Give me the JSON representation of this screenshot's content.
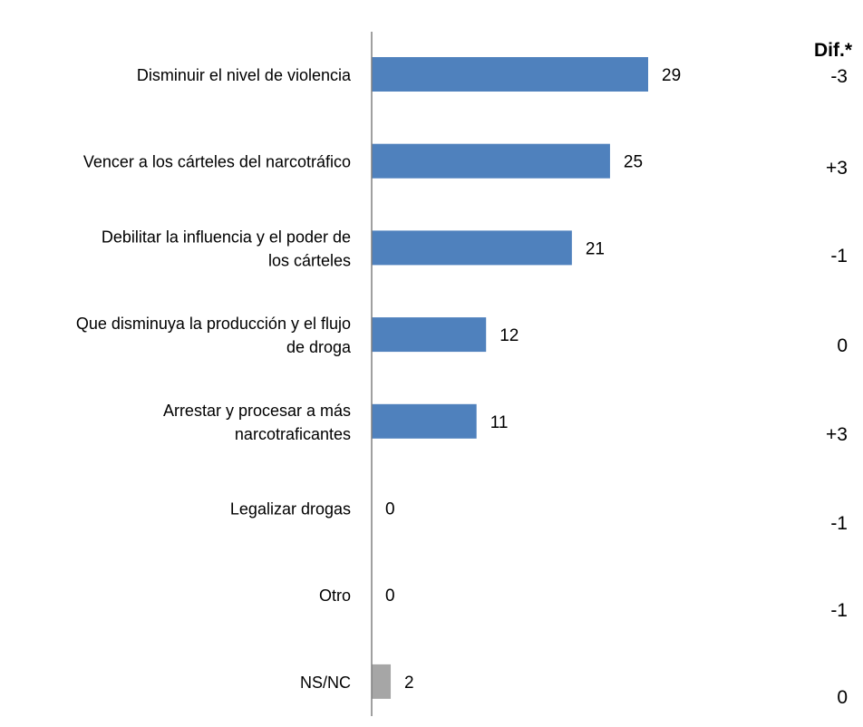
{
  "chart_data": {
    "type": "bar",
    "orientation": "horizontal",
    "categories": [
      [
        "Disminuir el nivel de violencia"
      ],
      [
        "Vencer a los cárteles del narcotráfico"
      ],
      [
        "Debilitar la influencia y el poder de",
        "los cárteles"
      ],
      [
        "Que disminuya la producción y el flujo",
        "de droga"
      ],
      [
        "Arrestar y procesar a más",
        "narcotraficantes"
      ],
      [
        "Legalizar drogas"
      ],
      [
        "Otro"
      ],
      [
        "NS/NC"
      ]
    ],
    "values": [
      29,
      25,
      21,
      12,
      11,
      0,
      0,
      2
    ],
    "value_labels": [
      "29",
      "25",
      "21",
      "12",
      "11",
      "0",
      "0",
      "2"
    ],
    "dif_header": "Dif.*",
    "dif_values": [
      "-3",
      "+3",
      "-1",
      "0",
      "+3",
      "-1",
      "-1",
      "0"
    ],
    "bar_colors": [
      "#4f81bd",
      "#4f81bd",
      "#4f81bd",
      "#4f81bd",
      "#4f81bd",
      "#4f81bd",
      "#4f81bd",
      "#a6a6a6"
    ],
    "axis_color": "#808080",
    "xlim": [
      0,
      35
    ],
    "grid": false,
    "legend": "none"
  }
}
